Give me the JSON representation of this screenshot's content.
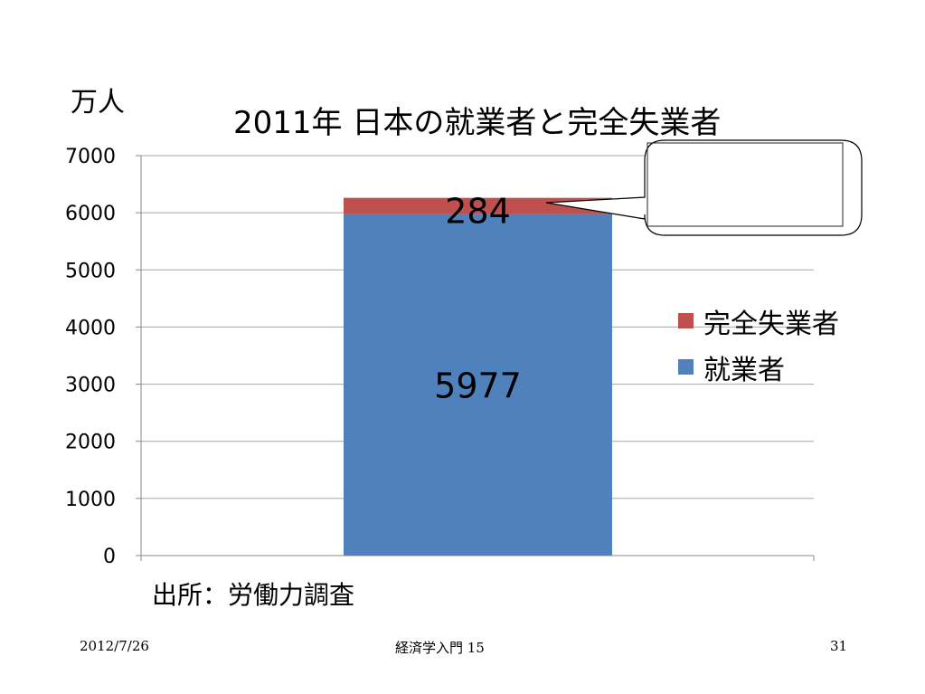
{
  "slide": {
    "unit_label": "万人",
    "title": "2011年 日本の就業者と完全失業者",
    "source": "出所：労働力調査",
    "footer": {
      "date": "2012/7/26",
      "course": "経済学入門 15",
      "page": "31"
    }
  },
  "chart_data": {
    "type": "bar",
    "stacked": true,
    "title": "2011年 日本の就業者と完全失業者",
    "ylabel": "万人",
    "ylim": [
      0,
      7000
    ],
    "yticks": [
      "0",
      "1000",
      "2000",
      "3000",
      "4000",
      "5000",
      "6000",
      "7000"
    ],
    "grid": true,
    "legend_position": "right",
    "categories": [
      "2011"
    ],
    "series": [
      {
        "name": "就業者",
        "values": [
          5977
        ],
        "color": "#4f81bd",
        "label": "5977"
      },
      {
        "name": "完全失業者",
        "values": [
          284
        ],
        "color": "#c0504d",
        "label": "284"
      }
    ],
    "legend_order": [
      "完全失業者",
      "就業者"
    ]
  }
}
